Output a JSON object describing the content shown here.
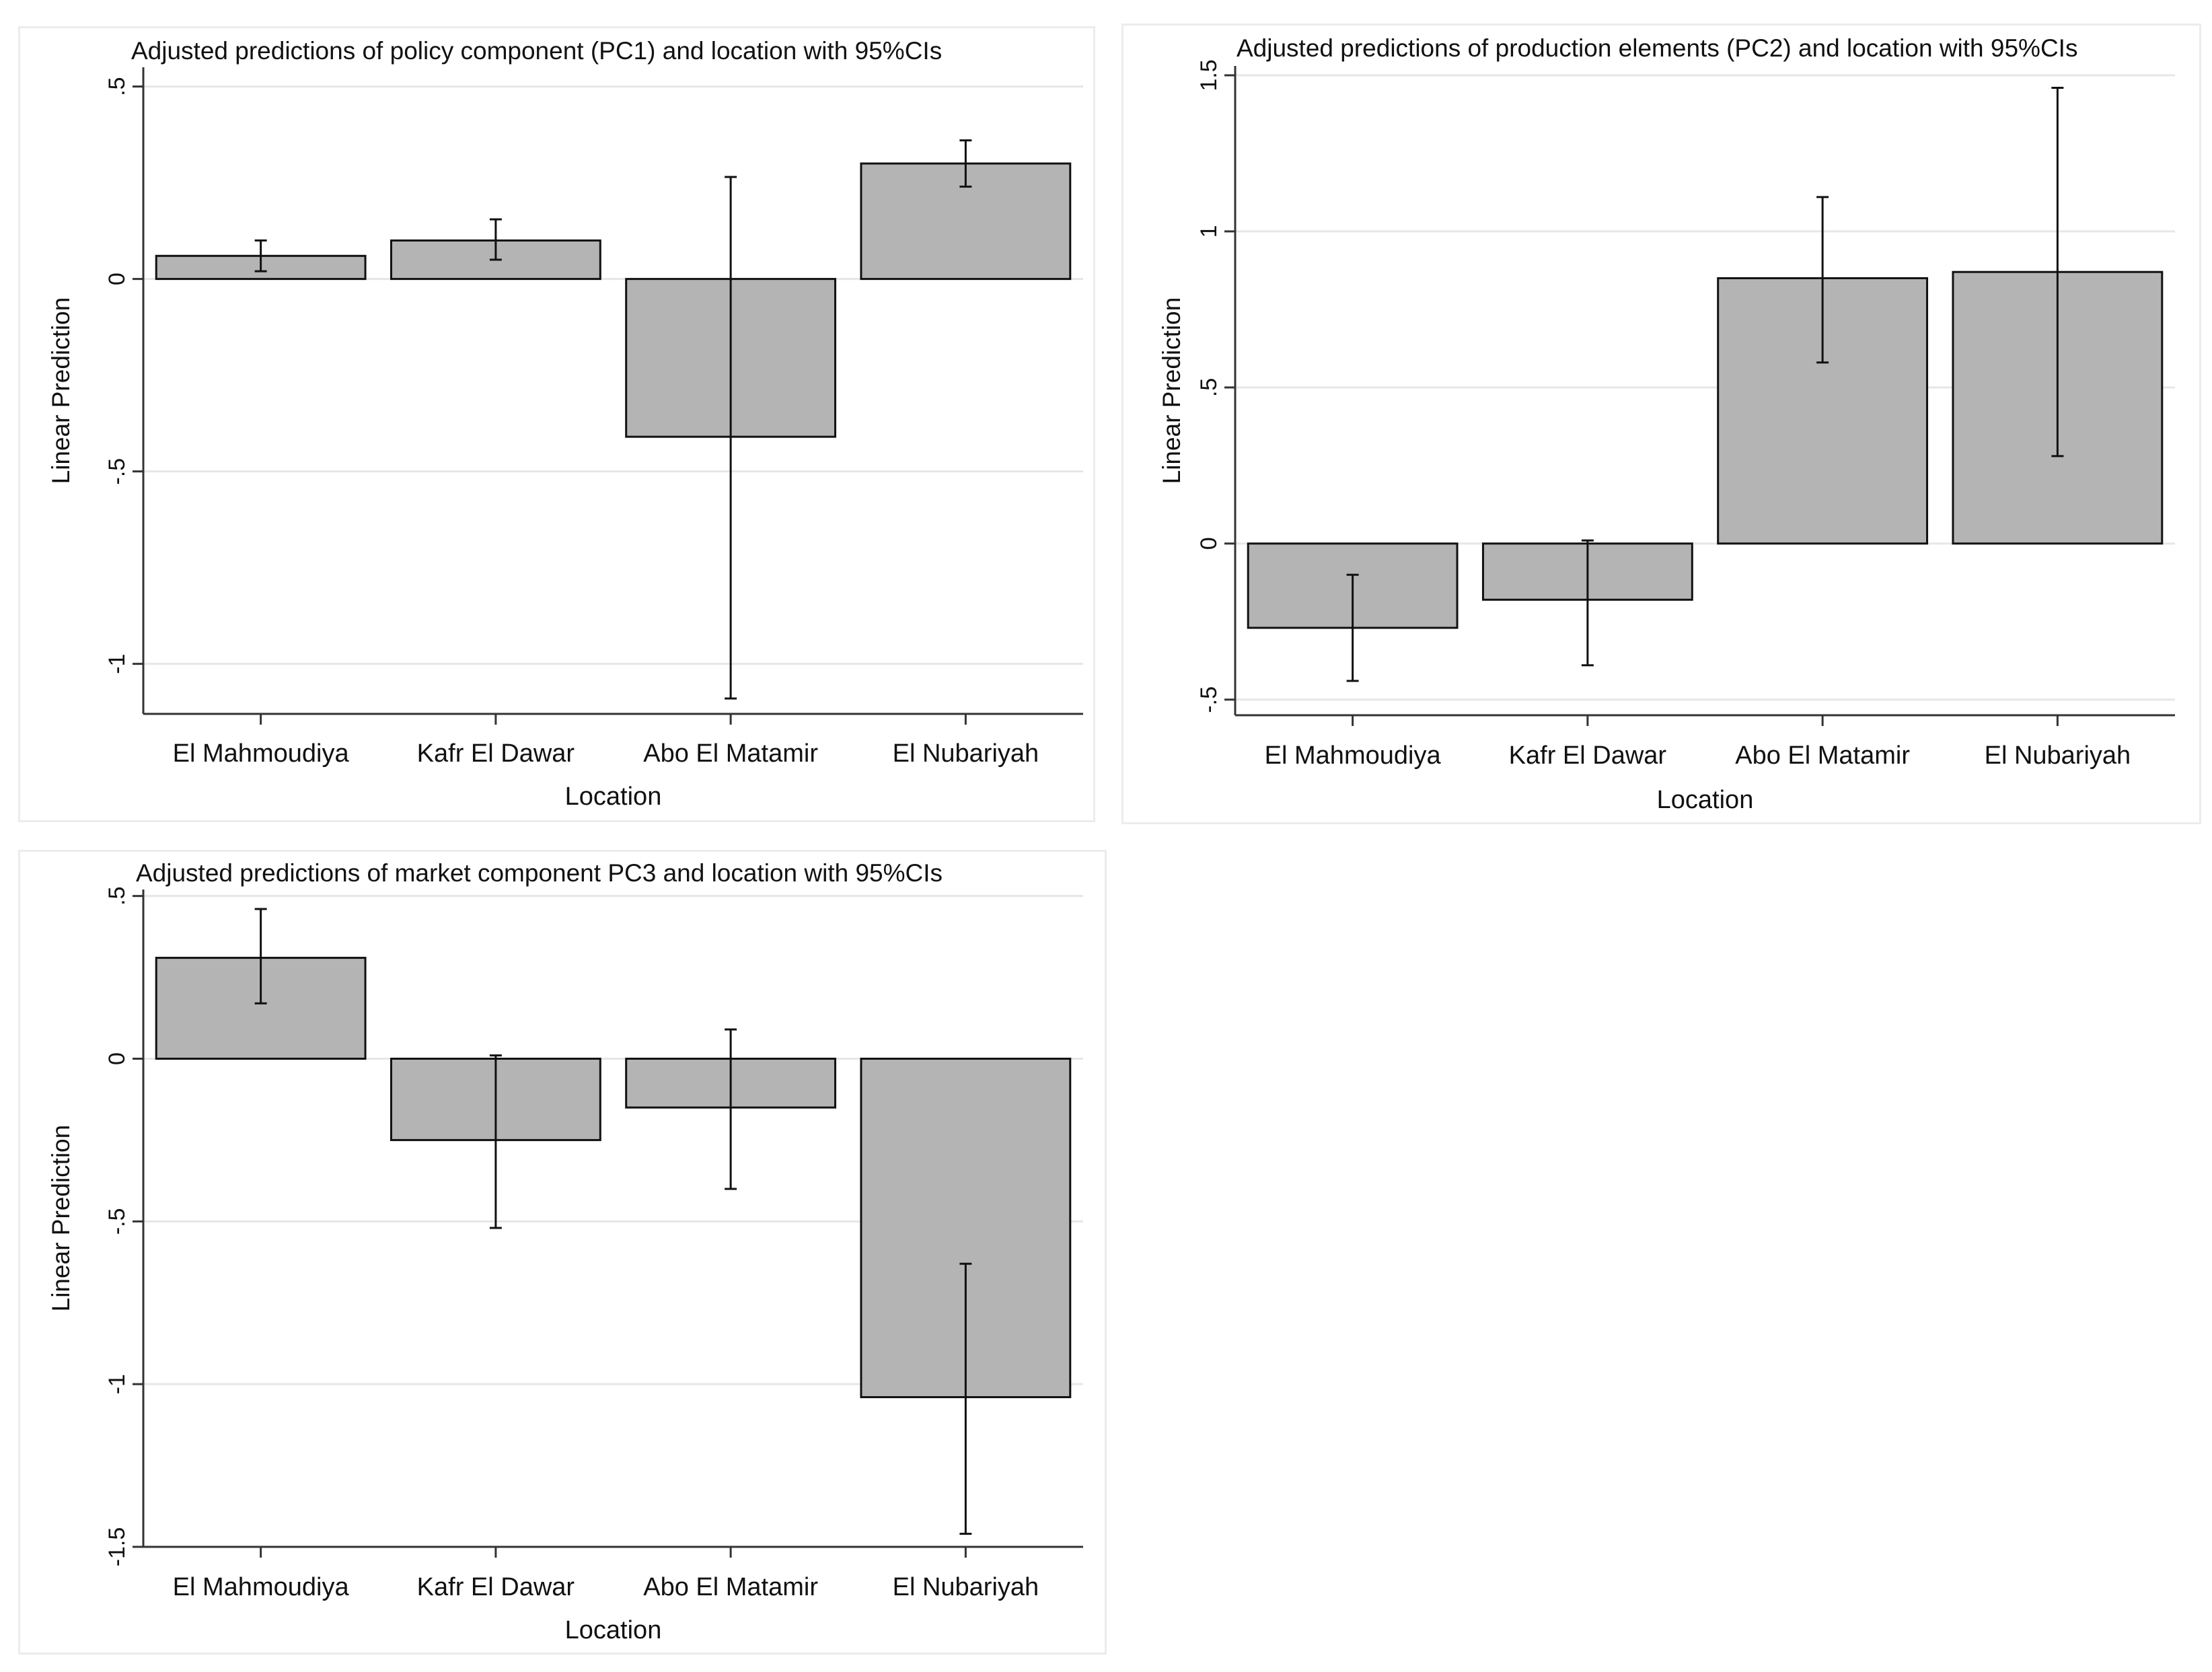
{
  "colors": {
    "bar_fill": "#b4b4b4",
    "bar_stroke": "#111111",
    "grid": "#e6e6e6",
    "axis": "#333333"
  },
  "chart_data": [
    {
      "type": "bar",
      "title": "Adjusted predictions of policy component (PC1) and location with 95%CIs",
      "xlabel": "Location",
      "ylabel": "Linear Prediction",
      "categories": [
        "El Mahmoudiya",
        "Kafr El Dawar",
        "Abo El Matamir",
        "El Nubariyah"
      ],
      "values": [
        0.06,
        0.1,
        -0.41,
        0.3
      ],
      "ci_lower": [
        0.02,
        0.05,
        -1.09,
        0.24
      ],
      "ci_upper": [
        0.1,
        0.155,
        0.265,
        0.36
      ],
      "ylim": [
        -1.13,
        0.55
      ],
      "yticks": [
        -1,
        -0.5,
        0,
        0.5
      ],
      "ytick_labels": [
        "-1",
        "-.5",
        "0",
        ".5"
      ],
      "grid": true
    },
    {
      "type": "bar",
      "title": "Adjusted predictions of production elements (PC2) and location with 95%CIs",
      "xlabel": "Location",
      "ylabel": "Linear Prediction",
      "categories": [
        "El Mahmoudiya",
        "Kafr El Dawar",
        "Abo El Matamir",
        "El Nubariyah"
      ],
      "values": [
        -0.27,
        -0.18,
        0.85,
        0.87
      ],
      "ci_lower": [
        -0.44,
        -0.39,
        0.58,
        0.28
      ],
      "ci_upper": [
        -0.1,
        0.01,
        1.11,
        1.46
      ],
      "ylim": [
        -0.55,
        1.53
      ],
      "yticks": [
        -0.5,
        0,
        0.5,
        1,
        1.5
      ],
      "ytick_labels": [
        "-.5",
        "0",
        ".5",
        "1",
        "1.5"
      ],
      "grid": true
    },
    {
      "type": "bar",
      "title": "Adjusted predictions of market component PC3 and location with 95%CIs",
      "xlabel": "Location",
      "ylabel": "Linear Prediction",
      "categories": [
        "El Mahmoudiya",
        "Kafr El Dawar",
        "Abo El Matamir",
        "El Nubariyah"
      ],
      "values": [
        0.31,
        -0.25,
        -0.15,
        -1.04
      ],
      "ci_lower": [
        0.17,
        -0.52,
        -0.4,
        -1.46
      ],
      "ci_upper": [
        0.46,
        0.01,
        0.09,
        -0.63
      ],
      "ylim": [
        -1.5,
        0.52
      ],
      "yticks": [
        -1.5,
        -1,
        -0.5,
        0,
        0.5
      ],
      "ytick_labels": [
        "-1.5",
        "-1",
        "-.5",
        "0",
        ".5"
      ],
      "grid": true
    }
  ]
}
